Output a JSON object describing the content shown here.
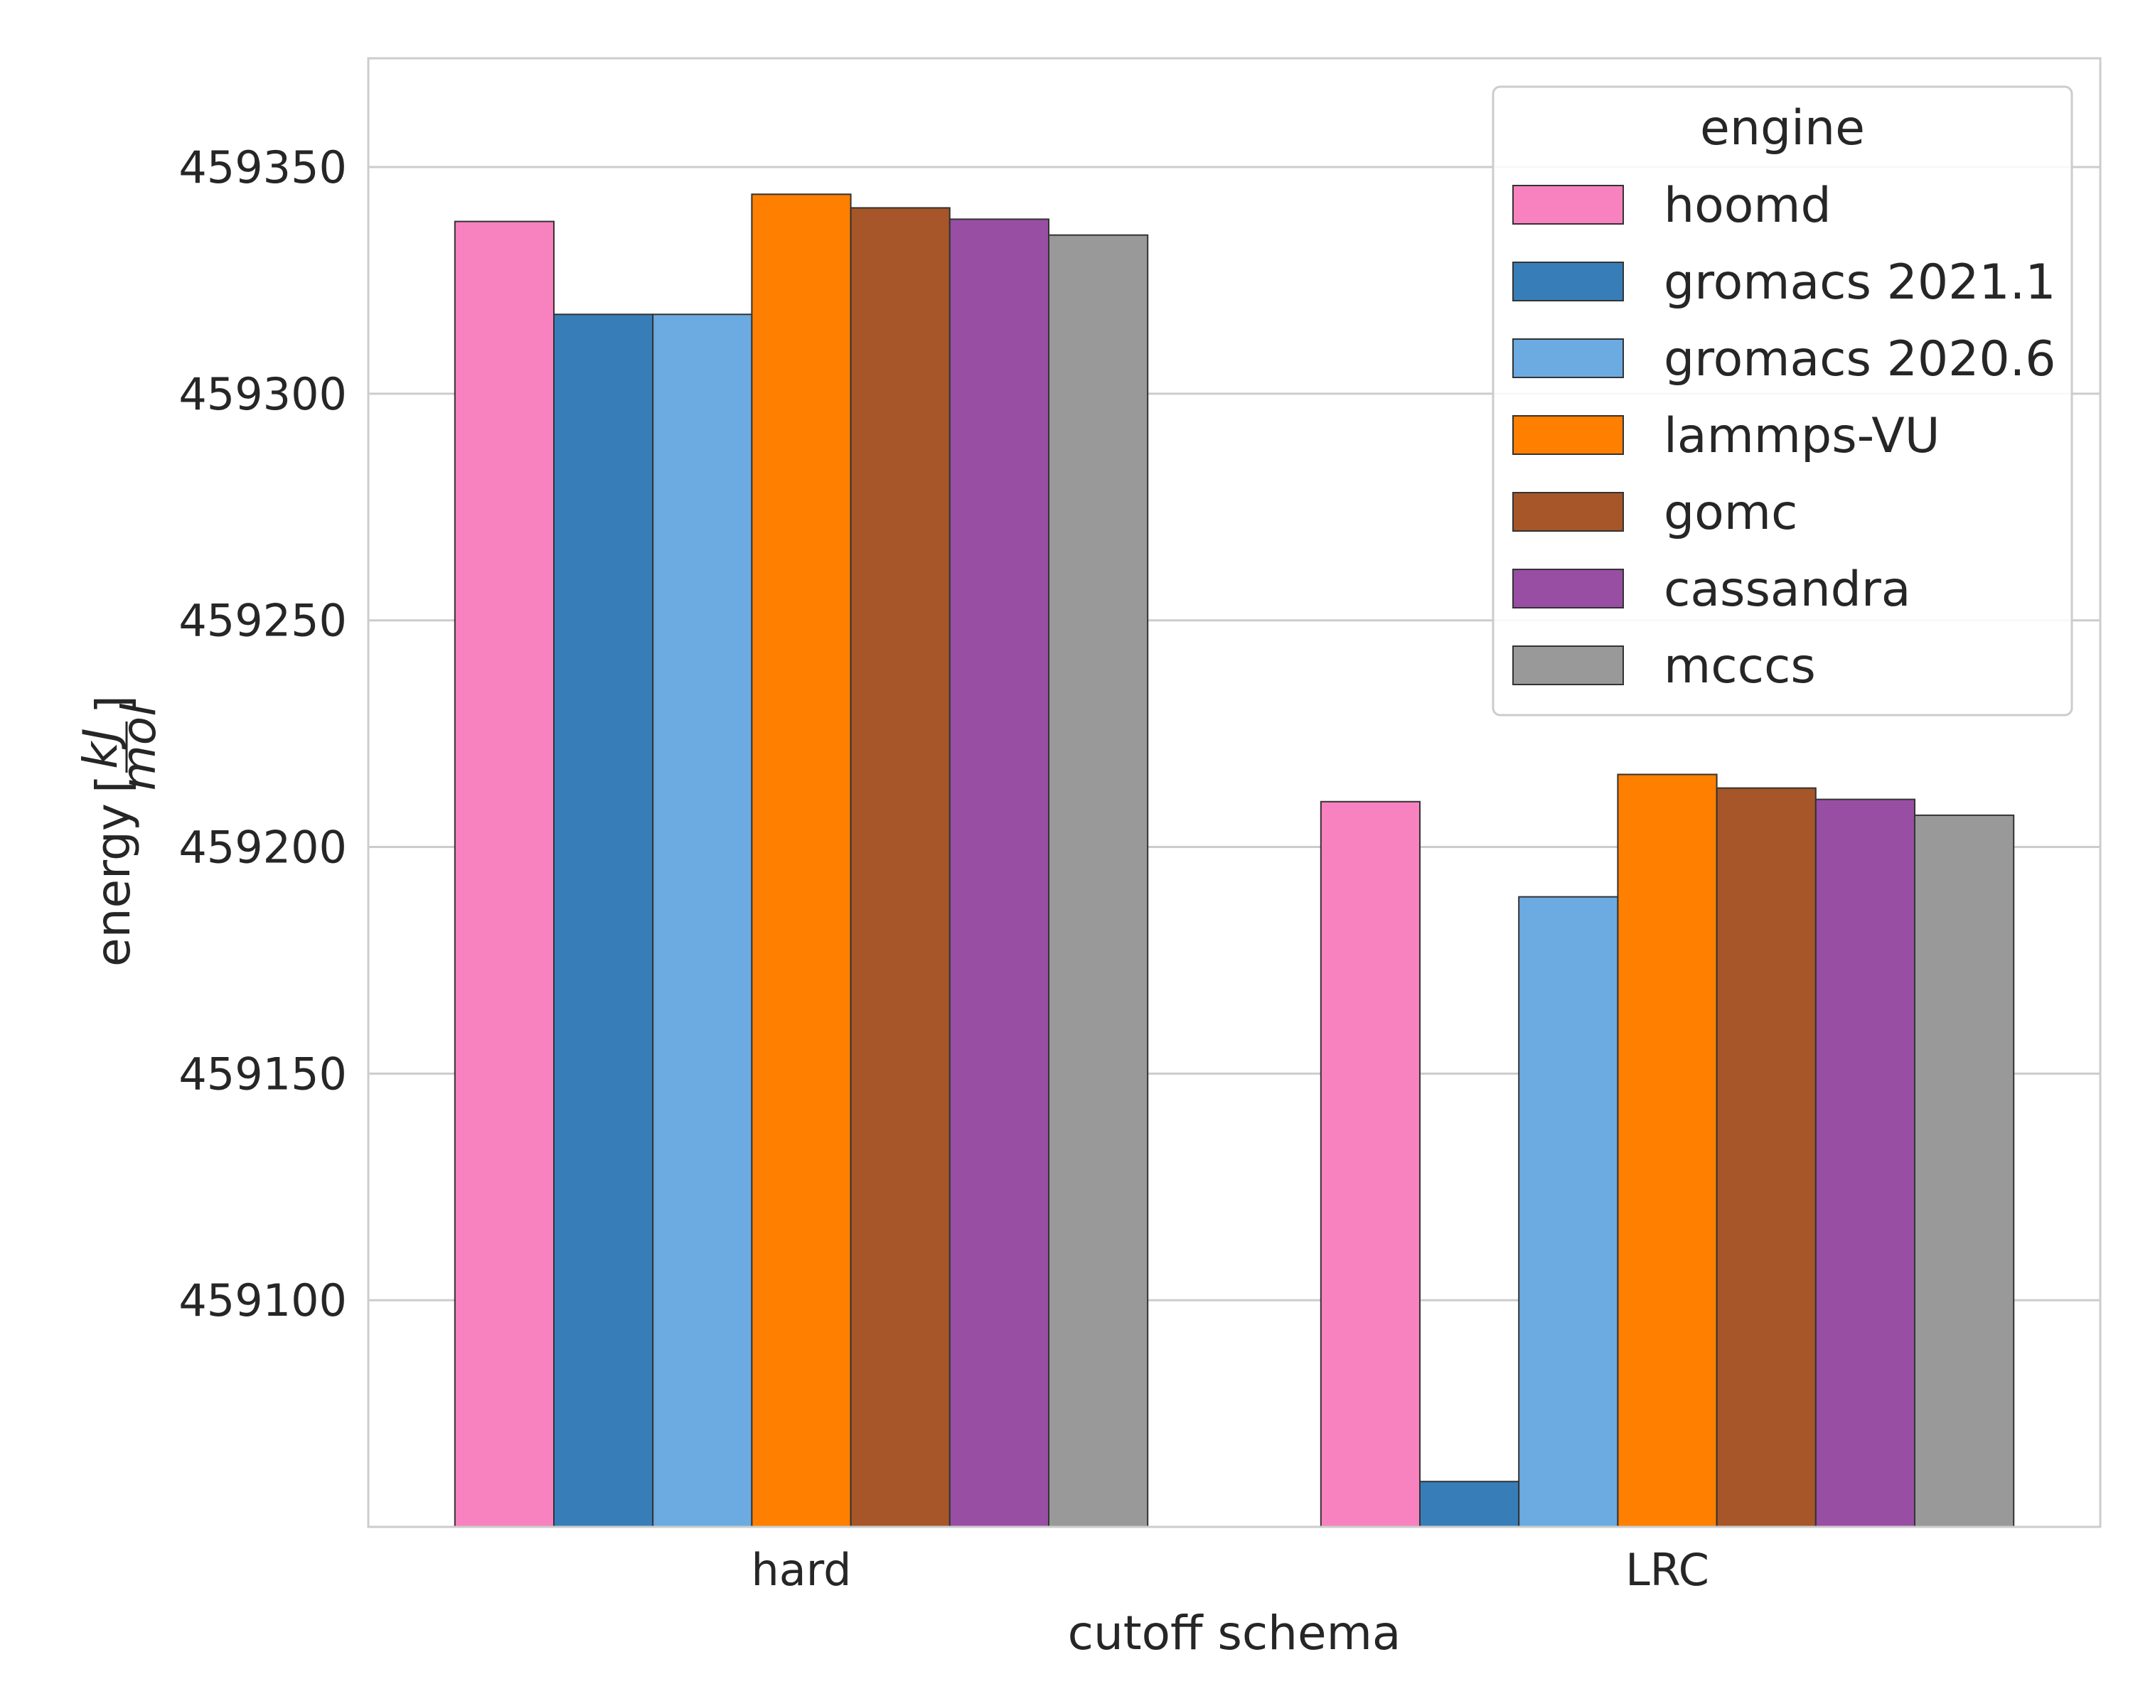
{
  "chart_data": {
    "type": "bar",
    "categories": [
      "hard",
      "LRC"
    ],
    "series": [
      {
        "name": "hoomd",
        "values": [
          459338,
          459210
        ]
      },
      {
        "name": "gromacs 2021.1",
        "values": [
          459317.5,
          459060
        ]
      },
      {
        "name": "gromacs 2020.6",
        "values": [
          459317.5,
          459189
        ]
      },
      {
        "name": "lammps-VU",
        "values": [
          459344,
          459216
        ]
      },
      {
        "name": "gomc",
        "values": [
          459341,
          459213
        ]
      },
      {
        "name": "cassandra",
        "values": [
          459338.5,
          459210.5
        ]
      },
      {
        "name": "mcccs",
        "values": [
          459335,
          459207
        ]
      }
    ],
    "colors": [
      "#f782bf",
      "#377eb8",
      "#6babe1",
      "#ff7f00",
      "#a65628",
      "#984ea3",
      "#999999"
    ],
    "ylim": [
      459050,
      459374
    ],
    "yticks": [
      459100,
      459150,
      459200,
      459250,
      459300,
      459350
    ],
    "ytick_labels": [
      "459100",
      "459150",
      "459200",
      "459250",
      "459300",
      "459350"
    ],
    "xlabel": "cutoff schema",
    "ylabel": {
      "prefix": "energy",
      "numerator": "kJ",
      "denominator": "mol"
    },
    "legend": {
      "title": "engine",
      "position": "upper right"
    },
    "grid": "y"
  }
}
